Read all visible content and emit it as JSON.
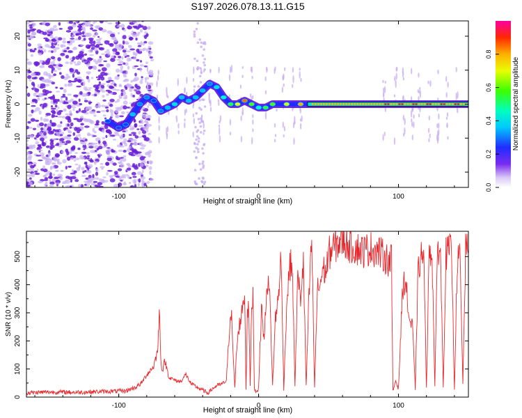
{
  "title": "S197.2026.078.13.11.G15",
  "colors": {
    "snr_line": "#e8262b",
    "frame": "#000000",
    "speckle_dark": "#6a1fd6",
    "speckle_light": "#c7b0f2"
  },
  "chart_data": [
    {
      "type": "heatmap",
      "name": "spectrogram",
      "xlabel": "Height of straight line (km)",
      "ylabel": "Frequency (Hz)",
      "xlim": [
        -166,
        150
      ],
      "ylim": [
        -24.5,
        24.5
      ],
      "xticks": [
        -100,
        0,
        100
      ],
      "xtick_labels": [
        "-100",
        "0",
        "100"
      ],
      "yticks": [
        -20,
        -10,
        0,
        10,
        20
      ],
      "ytick_labels": [
        "-20",
        "-10",
        "0",
        "10",
        "20"
      ],
      "colorbar": {
        "label": "Normalized spectral amplitude",
        "range": [
          0,
          1
        ],
        "ticks": [
          0.0,
          0.2,
          0.4,
          0.6,
          0.8
        ],
        "tick_labels": [
          "0.0",
          "0.2",
          "0.4",
          "0.6",
          "0.8"
        ],
        "colormap": "rainbow (white, violet, blue, cyan, green, yellow, red, magenta)"
      },
      "peak_frequency_track": {
        "x": [
          -108,
          -100,
          -95,
          -90,
          -85,
          -80,
          -75,
          -70,
          -65,
          -60,
          -55,
          -50,
          -45,
          -40,
          -35,
          -30,
          -25,
          -20,
          -15,
          -10,
          -5,
          0,
          5,
          10,
          20,
          30,
          40,
          60,
          80,
          100,
          120,
          150
        ],
        "y": [
          -5,
          -7,
          -6,
          -3,
          0,
          2,
          1,
          -2,
          -1,
          0,
          2,
          1,
          2,
          4,
          6,
          5,
          2,
          0,
          0,
          1,
          0,
          -1,
          -1,
          0,
          0,
          0,
          0,
          0,
          0,
          0,
          0,
          0
        ],
        "amplitude": [
          0.25,
          0.2,
          0.25,
          0.35,
          0.3,
          0.3,
          0.25,
          0.3,
          0.35,
          0.4,
          0.35,
          0.35,
          0.35,
          0.35,
          0.3,
          0.4,
          0.45,
          0.55,
          0.7,
          0.85,
          0.6,
          0.45,
          0.55,
          0.6,
          0.7,
          0.8,
          0.85,
          0.9,
          0.9,
          0.85,
          0.85,
          0.85
        ]
      }
    },
    {
      "type": "line",
      "name": "snr",
      "xlabel": "Height of straight line (km)",
      "ylabel": "SNR (10 * v/v)",
      "xlim": [
        -166,
        150
      ],
      "ylim": [
        0,
        590
      ],
      "xticks": [
        -100,
        0,
        100
      ],
      "xtick_labels": [
        "-100",
        "0",
        "100"
      ],
      "yticks": [
        0,
        100,
        200,
        300,
        400,
        500
      ],
      "ytick_labels": [
        "0",
        "100",
        "200",
        "300",
        "400",
        "500"
      ],
      "series": [
        {
          "name": "SNR",
          "x": [
            -166,
            -150,
            -130,
            -110,
            -95,
            -88,
            -84,
            -80,
            -75,
            -72,
            -71,
            -70,
            -69,
            -67,
            -64,
            -60,
            -56,
            -52,
            -48,
            -44,
            -40,
            -37,
            -35,
            -33,
            -30,
            -27,
            -25,
            -23,
            -21,
            -20,
            -19,
            -18,
            -17,
            -16,
            -14,
            -12,
            -11,
            -10,
            -9,
            -8,
            -7,
            -6,
            -5,
            -4,
            -3,
            -2,
            -1,
            0,
            2,
            4,
            6,
            8,
            10,
            12,
            14,
            16,
            18,
            20,
            22,
            24,
            26,
            28,
            30,
            32,
            34,
            36,
            38,
            40,
            42,
            44,
            46,
            48,
            50,
            55,
            60,
            65,
            70,
            75,
            80,
            85,
            90,
            94,
            95,
            96,
            97,
            98,
            100,
            103,
            105,
            107,
            108,
            110,
            112,
            114,
            116,
            118,
            120,
            122,
            124,
            126,
            128,
            130,
            132,
            134,
            136,
            138,
            140,
            142,
            144,
            146,
            148,
            150
          ],
          "y": [
            15,
            18,
            17,
            20,
            22,
            35,
            48,
            80,
            110,
            170,
            320,
            150,
            90,
            130,
            70,
            60,
            55,
            80,
            45,
            35,
            25,
            15,
            20,
            30,
            40,
            45,
            50,
            60,
            230,
            320,
            260,
            120,
            30,
            150,
            250,
            300,
            350,
            360,
            30,
            320,
            300,
            40,
            320,
            360,
            30,
            20,
            25,
            30,
            320,
            200,
            420,
            360,
            40,
            280,
            350,
            500,
            30,
            320,
            460,
            480,
            40,
            430,
            350,
            480,
            40,
            350,
            560,
            30,
            380,
            400,
            460,
            440,
            510,
            540,
            560,
            540,
            530,
            520,
            530,
            520,
            500,
            480,
            500,
            20,
            40,
            60,
            30,
            390,
            420,
            310,
            270,
            250,
            30,
            440,
            500,
            510,
            40,
            520,
            520,
            40,
            540,
            520,
            40,
            510,
            520,
            520,
            30,
            480,
            500,
            45,
            520,
            520
          ]
        }
      ]
    }
  ]
}
